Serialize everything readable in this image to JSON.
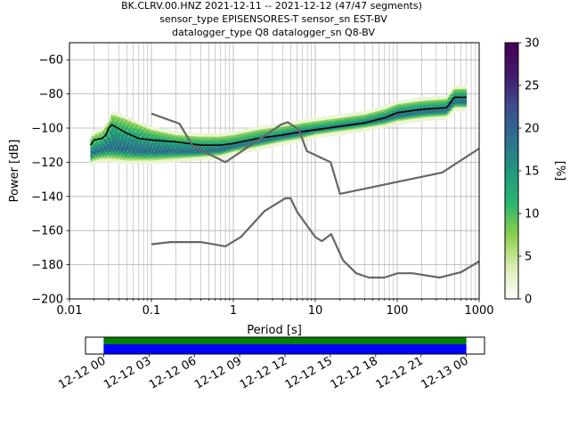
{
  "chart_data": {
    "type": "heatmap",
    "title_lines": [
      "BK.CLRV.00.HNZ   2021-12-11 -- 2021-12-12  (47/47 segments)",
      "sensor_type EPISENSORES-T sensor_sn EST-BV",
      "datalogger_type Q8 datalogger_sn Q8-BV"
    ],
    "xlabel": "Period [s]",
    "ylabel": "Power [dB]",
    "x_scale": "log",
    "xlim": [
      0.01,
      1000
    ],
    "ylim": [
      -200,
      -50
    ],
    "x_ticks": [
      {
        "value": 0.01,
        "label": "0.01"
      },
      {
        "value": 0.1,
        "label": "0.1"
      },
      {
        "value": 1,
        "label": "1"
      },
      {
        "value": 10,
        "label": "10"
      },
      {
        "value": 100,
        "label": "100"
      },
      {
        "value": 1000,
        "label": "1000"
      }
    ],
    "y_ticks": [
      -60,
      -80,
      -100,
      -120,
      -140,
      -160,
      -180,
      -200
    ],
    "y_tick_labels": [
      "−60",
      "−80",
      "−100",
      "−120",
      "−140",
      "−160",
      "−180",
      "−200"
    ],
    "grid": true,
    "colorbar": {
      "label": "[%]",
      "range": [
        0,
        30
      ],
      "ticks": [
        0,
        5,
        10,
        15,
        20,
        25,
        30
      ],
      "colormap": "pqlx",
      "stops": [
        "#ffffff",
        "#d9ecb0",
        "#8ccf4d",
        "#2ab56e",
        "#22967f",
        "#2e6f8e",
        "#3b4d8c",
        "#431a6b",
        "#440154"
      ]
    },
    "series": [
      {
        "name": "",
        "role": "mode",
        "x": [
          0.018,
          0.02,
          0.025,
          0.028,
          0.03,
          0.033,
          0.05,
          0.07,
          0.1,
          0.2,
          0.4,
          0.7,
          1.0,
          2,
          4,
          7,
          10,
          20,
          40,
          70,
          100,
          200,
          400,
          500,
          600,
          700
        ],
        "y": [
          -110,
          -107,
          -106,
          -104,
          -100,
          -98,
          -103,
          -106,
          -107,
          -108,
          -110,
          -110,
          -109,
          -106,
          -104,
          -102,
          -101,
          -99,
          -97,
          -94,
          -91,
          -89,
          -88,
          -82,
          -82,
          -82
        ]
      },
      {
        "name": "",
        "role": "new-high-noise-model",
        "x": [
          0.1,
          0.22,
          0.32,
          0.8,
          3.8,
          4.6,
          6.3,
          7.9,
          15.4,
          20,
          354.8,
          1000
        ],
        "y": [
          -91.5,
          -97.4,
          -110.5,
          -120,
          -98,
          -96.5,
          -101,
          -113.5,
          -120,
          -138.5,
          -126,
          -112
        ]
      },
      {
        "name": "",
        "role": "new-low-noise-model",
        "x": [
          0.1,
          0.17,
          0.4,
          0.8,
          1.24,
          2.4,
          4.3,
          5.0,
          6.0,
          10,
          12,
          15.6,
          21.9,
          31.6,
          45,
          70,
          101,
          154,
          328,
          600,
          1000
        ],
        "y": [
          -168,
          -166.7,
          -166.7,
          -169.2,
          -163.7,
          -148.6,
          -141.1,
          -141.1,
          -149,
          -163.8,
          -166.2,
          -162.1,
          -177.5,
          -185,
          -187.5,
          -187.5,
          -185,
          -185,
          -187.5,
          -184.4,
          -178
        ]
      }
    ],
    "density_bands": [
      {
        "x": [
          0.018,
          0.02,
          0.025,
          0.03,
          0.033,
          0.05,
          0.07,
          0.1,
          0.2,
          0.4,
          0.7,
          1,
          2,
          4,
          7,
          10,
          20,
          40,
          70,
          100,
          200,
          400,
          500,
          700
        ],
        "y": [
          -106,
          -104,
          -102,
          -97,
          -92,
          -95,
          -98,
          -101,
          -104,
          -105,
          -105,
          -104,
          -101,
          -99,
          -97,
          -96,
          -94,
          -92,
          -89,
          -86,
          -84,
          -83,
          -77,
          -77
        ],
        "level": 6
      },
      {
        "x": [
          0.018,
          0.02,
          0.025,
          0.03,
          0.033,
          0.05,
          0.07,
          0.1,
          0.2,
          0.4,
          0.7,
          1,
          2,
          4,
          7,
          10,
          20,
          40,
          70,
          100,
          200,
          400,
          500,
          700
        ],
        "y": [
          -112,
          -110,
          -108,
          -104,
          -100,
          -102,
          -104,
          -106,
          -108,
          -109,
          -109,
          -108,
          -105,
          -102,
          -100,
          -99,
          -97,
          -95,
          -92,
          -89,
          -87,
          -86,
          -80,
          -80
        ],
        "level": 12
      },
      {
        "x": [
          0.018,
          0.02,
          0.025,
          0.03,
          0.033,
          0.05,
          0.07,
          0.1,
          0.2,
          0.4,
          0.7,
          1,
          2,
          4,
          7,
          10,
          20,
          40,
          70,
          100,
          200,
          400,
          500,
          700
        ],
        "y": [
          -116,
          -114,
          -113,
          -112,
          -112,
          -113,
          -114,
          -114,
          -114,
          -114,
          -113,
          -111,
          -108,
          -105,
          -103,
          -101,
          -99,
          -97,
          -95,
          -93,
          -91,
          -90,
          -85,
          -85
        ],
        "level": 18
      },
      {
        "x": [
          0.018,
          0.02,
          0.025,
          0.03,
          0.033,
          0.05,
          0.07,
          0.1,
          0.2,
          0.4,
          0.7,
          1,
          2,
          4,
          7,
          10,
          20,
          40,
          70,
          100,
          200,
          400,
          500,
          700
        ],
        "y": [
          -120,
          -119,
          -118,
          -118,
          -118,
          -119,
          -119,
          -119,
          -118,
          -117,
          -116,
          -114,
          -111,
          -108,
          -106,
          -104,
          -102,
          -100,
          -98,
          -96,
          -94,
          -93,
          -88,
          -88
        ],
        "level": 4
      }
    ],
    "data_availability": {
      "ticks": [
        "12-12 00",
        "12-12 03",
        "12-12 06",
        "12-12 09",
        "12-12 12",
        "12-12 15",
        "12-12 18",
        "12-12 21",
        "12-13 00"
      ],
      "tick_hours": [
        0,
        3,
        6,
        9,
        12,
        15,
        18,
        21,
        24
      ],
      "range_hours": [
        -1.2,
        25.2
      ],
      "data_color": "#008000",
      "segments_color": "#0000ff",
      "coverage_hours": [
        0,
        24
      ]
    }
  }
}
